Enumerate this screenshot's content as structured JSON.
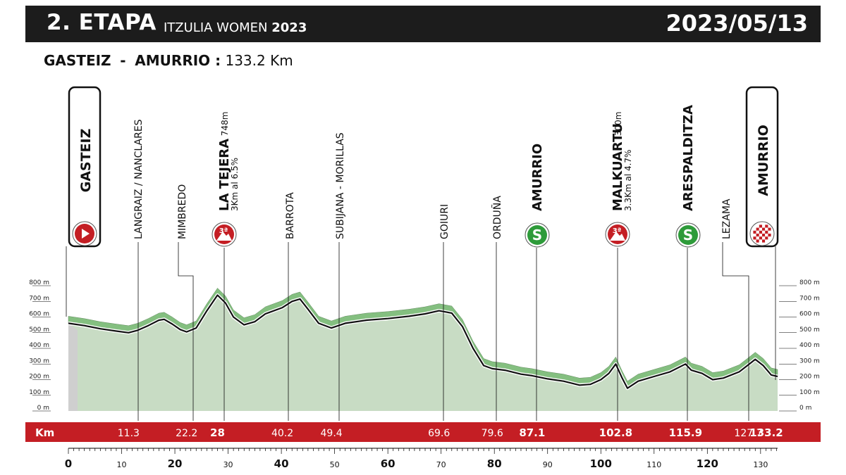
{
  "header": {
    "stage": "2. ETAPA",
    "race_name": "ITZULIA WOMEN",
    "race_year": "2023",
    "date": "2023/05/13"
  },
  "route": {
    "start": "GASTEIZ",
    "separator": "-",
    "finish": "AMURRIO :",
    "distance": "133.2 Km"
  },
  "colors": {
    "header_bg": "#1c1c1c",
    "km_bar": "#c41e24",
    "profile_fill": "#c8dcc4",
    "profile_shade": "#6fb46a",
    "climb_badge": "#c41e24",
    "sprint_badge": "#2e9b3a"
  },
  "chart_data": {
    "type": "area",
    "x_unit": "Km",
    "xlim": [
      0,
      133.2
    ],
    "ylim": [
      0,
      800
    ],
    "y_ticks": [
      "0 m",
      "100 m",
      "200 m",
      "300 m",
      "400 m",
      "500 m",
      "600 m",
      "700 m",
      "800 m"
    ],
    "y_tick_values": [
      0,
      100,
      200,
      300,
      400,
      500,
      600,
      700,
      800
    ],
    "x_ticks": [
      "0",
      "10",
      "20",
      "30",
      "40",
      "50",
      "60",
      "70",
      "80",
      "90",
      "100",
      "110",
      "120",
      "130"
    ],
    "x_tick_values": [
      0,
      10,
      20,
      30,
      40,
      50,
      60,
      70,
      80,
      90,
      100,
      110,
      120,
      130
    ],
    "km_label": "Km",
    "profile": [
      [
        0,
        560
      ],
      [
        3,
        545
      ],
      [
        6,
        525
      ],
      [
        9,
        510
      ],
      [
        11.3,
        500
      ],
      [
        13,
        515
      ],
      [
        15,
        545
      ],
      [
        17,
        580
      ],
      [
        18,
        585
      ],
      [
        19.5,
        555
      ],
      [
        21,
        520
      ],
      [
        22.2,
        505
      ],
      [
        24,
        530
      ],
      [
        26,
        640
      ],
      [
        28,
        740
      ],
      [
        29.5,
        690
      ],
      [
        31,
        600
      ],
      [
        33,
        550
      ],
      [
        35,
        570
      ],
      [
        37,
        620
      ],
      [
        40.2,
        660
      ],
      [
        42,
        700
      ],
      [
        43.5,
        715
      ],
      [
        45,
        650
      ],
      [
        47,
        560
      ],
      [
        49.4,
        530
      ],
      [
        52,
        560
      ],
      [
        56,
        580
      ],
      [
        60,
        590
      ],
      [
        64,
        605
      ],
      [
        67,
        620
      ],
      [
        69.6,
        640
      ],
      [
        72,
        625
      ],
      [
        74,
        540
      ],
      [
        76,
        400
      ],
      [
        78,
        290
      ],
      [
        79.6,
        270
      ],
      [
        82,
        260
      ],
      [
        85,
        235
      ],
      [
        87.1,
        225
      ],
      [
        90,
        205
      ],
      [
        93,
        190
      ],
      [
        96,
        165
      ],
      [
        98,
        170
      ],
      [
        100,
        200
      ],
      [
        101.5,
        240
      ],
      [
        102.8,
        300
      ],
      [
        104,
        210
      ],
      [
        105,
        145
      ],
      [
        107,
        190
      ],
      [
        110,
        220
      ],
      [
        113,
        250
      ],
      [
        115.9,
        300
      ],
      [
        117,
        260
      ],
      [
        119,
        240
      ],
      [
        121,
        200
      ],
      [
        123,
        210
      ],
      [
        126,
        250
      ],
      [
        127.7,
        295
      ],
      [
        129,
        330
      ],
      [
        130.5,
        290
      ],
      [
        132,
        230
      ],
      [
        133.2,
        220
      ]
    ],
    "waypoints": [
      {
        "name": "GASTEIZ",
        "km": 11.3,
        "km_label": "",
        "type": "start",
        "bold": true,
        "boxed": true
      },
      {
        "name": "LANGRAIZ / NANCLARES",
        "km": 11.3,
        "km_label": "11.3",
        "type": "town"
      },
      {
        "name": "MIMBREDO",
        "km": 22.2,
        "km_label": "22.2",
        "type": "town"
      },
      {
        "name": "LA TEJERA",
        "km": 28,
        "km_label": "28",
        "type": "climb",
        "bold": true,
        "alt": "748m",
        "detail": "3Km al 6.5%",
        "cat": "3ª"
      },
      {
        "name": "BARROTA",
        "km": 40.2,
        "km_label": "40.2",
        "type": "town"
      },
      {
        "name": "SUBIJANA - MORILLAS",
        "km": 49.4,
        "km_label": "49.4",
        "type": "town"
      },
      {
        "name": "GOIURI",
        "km": 69.6,
        "km_label": "69.6",
        "type": "town"
      },
      {
        "name": "ORDUÑA",
        "km": 79.6,
        "km_label": "79.6",
        "type": "town"
      },
      {
        "name": "AMURRIO",
        "km": 87.1,
        "km_label": "87.1",
        "type": "sprint",
        "bold": true,
        "badge": "S"
      },
      {
        "name": "MALKUARTU",
        "km": 102.8,
        "km_label": "102.8",
        "type": "climb",
        "bold": true,
        "alt": "300m",
        "detail": "3.3Km al 4.7%",
        "cat": "3ª"
      },
      {
        "name": "ARESPALDITZA",
        "km": 115.9,
        "km_label": "115.9",
        "type": "sprint",
        "bold": true,
        "badge": "S"
      },
      {
        "name": "LEZAMA",
        "km": 127.7,
        "km_label": "127.7",
        "type": "town"
      },
      {
        "name": "AMURRIO",
        "km": 133.2,
        "km_label": "133.2",
        "type": "finish",
        "bold": true,
        "boxed": true
      }
    ]
  }
}
